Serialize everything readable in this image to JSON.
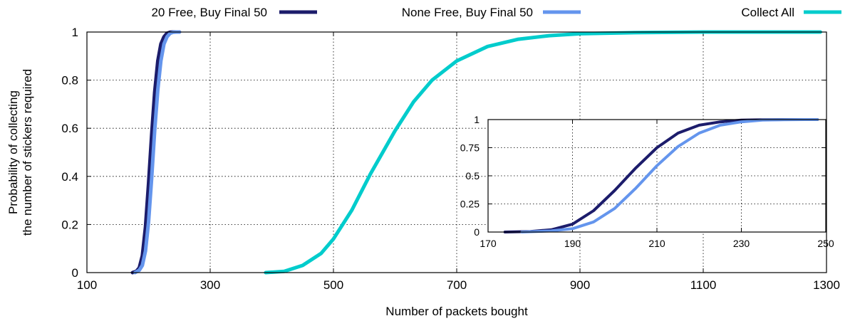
{
  "chart_data": [
    {
      "type": "line",
      "xlabel": "Number of packets bought",
      "ylabel_lines": [
        "Probability of collecting",
        "the number of stickers required"
      ],
      "xlim": [
        100,
        1300
      ],
      "ylim": [
        0,
        1
      ],
      "xticks": [
        "100",
        "300",
        "500",
        "700",
        "900",
        "1100",
        "1300"
      ],
      "yticks": [
        "0",
        "0.2",
        "0.4",
        "0.6",
        "0.8",
        "1"
      ],
      "grid": true,
      "legend_position": "top",
      "series": [
        {
          "name": "20 Free, Buy Final 50",
          "color": "#1c1c6b",
          "x": [
            174,
            180,
            185,
            190,
            195,
            200,
            205,
            210,
            215,
            220,
            225,
            230,
            235,
            240,
            245,
            250
          ],
          "y": [
            0.0,
            0.005,
            0.02,
            0.07,
            0.19,
            0.37,
            0.57,
            0.75,
            0.88,
            0.95,
            0.98,
            0.995,
            0.999,
            1.0,
            1.0,
            1.0
          ]
        },
        {
          "name": "None Free, Buy Final 50",
          "color": "#6495ed",
          "x": [
            178,
            185,
            190,
            195,
            200,
            205,
            210,
            215,
            220,
            225,
            230,
            235,
            240,
            245,
            250
          ],
          "y": [
            0.0,
            0.01,
            0.03,
            0.09,
            0.21,
            0.39,
            0.59,
            0.76,
            0.88,
            0.95,
            0.98,
            0.995,
            0.999,
            1.0,
            1.0
          ]
        },
        {
          "name": "Collect All",
          "color": "#00cccc",
          "x": [
            390,
            420,
            450,
            480,
            500,
            530,
            560,
            580,
            600,
            630,
            660,
            700,
            750,
            800,
            850,
            900,
            1000,
            1100,
            1200,
            1290
          ],
          "y": [
            0.0,
            0.005,
            0.03,
            0.08,
            0.14,
            0.26,
            0.41,
            0.5,
            0.59,
            0.71,
            0.8,
            0.88,
            0.94,
            0.97,
            0.985,
            0.993,
            0.998,
            1.0,
            1.0,
            1.0
          ]
        }
      ]
    },
    {
      "type": "line",
      "inset": true,
      "xlim": [
        170,
        250
      ],
      "ylim": [
        0,
        1
      ],
      "xticks": [
        "170",
        "190",
        "210",
        "230",
        "250"
      ],
      "yticks": [
        "0",
        "0.25",
        "0.5",
        "0.75",
        "1"
      ],
      "grid": true,
      "series": [
        {
          "color": "#1c1c6b",
          "x": [
            174,
            180,
            185,
            190,
            195,
            200,
            205,
            210,
            215,
            220,
            225,
            230,
            235,
            240,
            245,
            248
          ],
          "y": [
            0.0,
            0.005,
            0.02,
            0.07,
            0.19,
            0.37,
            0.57,
            0.75,
            0.88,
            0.95,
            0.98,
            0.995,
            0.999,
            1.0,
            1.0,
            1.0
          ]
        },
        {
          "color": "#6495ed",
          "x": [
            178,
            185,
            190,
            195,
            200,
            205,
            210,
            215,
            220,
            225,
            230,
            235,
            240,
            245,
            248
          ],
          "y": [
            0.0,
            0.01,
            0.03,
            0.09,
            0.21,
            0.39,
            0.59,
            0.76,
            0.88,
            0.95,
            0.98,
            0.995,
            0.999,
            1.0,
            1.0
          ]
        }
      ]
    }
  ]
}
